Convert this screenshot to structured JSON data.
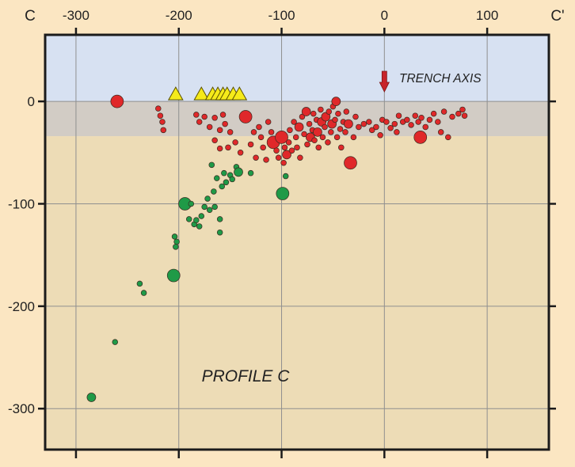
{
  "chart_data": {
    "type": "scatter",
    "title": "",
    "profile_label": "PROFILE C",
    "section_start_label": "C",
    "section_end_label": "C'",
    "xlabel": "",
    "ylabel": "",
    "xlim": [
      -330,
      160
    ],
    "ylim": [
      -340,
      65
    ],
    "x_ticks": [
      -300,
      -200,
      -100,
      0,
      100
    ],
    "x_tick_labels": [
      "-300",
      "-200",
      "-100",
      "0",
      "100"
    ],
    "y_ticks": [
      0,
      -100,
      -200,
      -300
    ],
    "y_tick_labels": [
      "0",
      "-100",
      "-200",
      "-300"
    ],
    "grid": true,
    "layers": [
      {
        "name": "water",
        "from": 65,
        "to": 0,
        "color": "#d7e1f2"
      },
      {
        "name": "crust",
        "from": 0,
        "to": -34,
        "color": "#d2ccc5"
      },
      {
        "name": "mantle",
        "from": -34,
        "to": -340,
        "color": "#eddcb6"
      }
    ],
    "volcanoes": {
      "color": "#f5ea1a",
      "x": [
        -203,
        -178,
        -167,
        -162,
        -157,
        -153,
        -147,
        -141
      ]
    },
    "trench_axis": {
      "label": "TRENCH AXIS",
      "x": 0,
      "color": "#c8242a"
    },
    "series": [
      {
        "color": "#e0282a",
        "points": [
          [
            -260,
            0,
            "l"
          ],
          [
            -220,
            -7,
            "s"
          ],
          [
            -218,
            -14,
            "s"
          ],
          [
            -216,
            -20,
            "s"
          ],
          [
            -215,
            -28,
            "s"
          ],
          [
            -183,
            -13,
            "s"
          ],
          [
            -180,
            -20,
            "s"
          ],
          [
            -175,
            -15,
            "s"
          ],
          [
            -170,
            -25,
            "s"
          ],
          [
            -165,
            -16,
            "s"
          ],
          [
            -160,
            -28,
            "s"
          ],
          [
            -157,
            -13,
            "s"
          ],
          [
            -155,
            -22,
            "s"
          ],
          [
            -150,
            -30,
            "s"
          ],
          [
            -165,
            -38,
            "s"
          ],
          [
            -160,
            -46,
            "s"
          ],
          [
            -152,
            -45,
            "s"
          ],
          [
            -145,
            -40,
            "s"
          ],
          [
            -140,
            -50,
            "s"
          ],
          [
            -135,
            -15,
            "l"
          ],
          [
            -130,
            -42,
            "s"
          ],
          [
            -127,
            -30,
            "s"
          ],
          [
            -125,
            -55,
            "s"
          ],
          [
            -122,
            -25,
            "s"
          ],
          [
            -120,
            -35,
            "s"
          ],
          [
            -118,
            -45,
            "s"
          ],
          [
            -115,
            -57,
            "s"
          ],
          [
            -113,
            -20,
            "s"
          ],
          [
            -110,
            -30,
            "s"
          ],
          [
            -108,
            -40,
            "l"
          ],
          [
            -105,
            -48,
            "s"
          ],
          [
            -103,
            -55,
            "s"
          ],
          [
            -100,
            -35,
            "l"
          ],
          [
            -98,
            -60,
            "s"
          ],
          [
            -97,
            -45,
            "s"
          ],
          [
            -95,
            -52,
            "m"
          ],
          [
            -93,
            -40,
            "s"
          ],
          [
            -92,
            -28,
            "s"
          ],
          [
            -90,
            -48,
            "s"
          ],
          [
            -88,
            -20,
            "s"
          ],
          [
            -86,
            -35,
            "s"
          ],
          [
            -85,
            -45,
            "s"
          ],
          [
            -83,
            -25,
            "m"
          ],
          [
            -82,
            -55,
            "s"
          ],
          [
            -80,
            -15,
            "s"
          ],
          [
            -78,
            -32,
            "s"
          ],
          [
            -76,
            -10,
            "m"
          ],
          [
            -75,
            -42,
            "s"
          ],
          [
            -73,
            -22,
            "s"
          ],
          [
            -72,
            -35,
            "m"
          ],
          [
            -70,
            -28,
            "s"
          ],
          [
            -69,
            -12,
            "s"
          ],
          [
            -68,
            -38,
            "s"
          ],
          [
            -66,
            -18,
            "s"
          ],
          [
            -65,
            -30,
            "m"
          ],
          [
            -64,
            -45,
            "s"
          ],
          [
            -62,
            -8,
            "s"
          ],
          [
            -61,
            -20,
            "m"
          ],
          [
            -60,
            -35,
            "s"
          ],
          [
            -58,
            -25,
            "s"
          ],
          [
            -57,
            -15,
            "m"
          ],
          [
            -55,
            -40,
            "s"
          ],
          [
            -54,
            -10,
            "s"
          ],
          [
            -52,
            -30,
            "s"
          ],
          [
            -51,
            -22,
            "m"
          ],
          [
            -50,
            -5,
            "s"
          ],
          [
            -48,
            -18,
            "s"
          ],
          [
            -47,
            0,
            "m"
          ],
          [
            -46,
            -35,
            "s"
          ],
          [
            -45,
            -12,
            "s"
          ],
          [
            -43,
            -27,
            "s"
          ],
          [
            -42,
            -45,
            "s"
          ],
          [
            -40,
            -20,
            "s"
          ],
          [
            -38,
            -30,
            "s"
          ],
          [
            -37,
            -10,
            "s"
          ],
          [
            -35,
            -22,
            "m"
          ],
          [
            -33,
            -60,
            "l"
          ],
          [
            -30,
            -35,
            "s"
          ],
          [
            -28,
            -15,
            "s"
          ],
          [
            -25,
            -25,
            "s"
          ],
          [
            -20,
            -22,
            "s"
          ],
          [
            -15,
            -20,
            "s"
          ],
          [
            -12,
            -28,
            "s"
          ],
          [
            -8,
            -25,
            "s"
          ],
          [
            -2,
            -18,
            "s"
          ],
          [
            2,
            -20,
            "s"
          ],
          [
            6,
            -26,
            "s"
          ],
          [
            10,
            -22,
            "s"
          ],
          [
            14,
            -14,
            "s"
          ],
          [
            18,
            -20,
            "s"
          ],
          [
            22,
            -18,
            "s"
          ],
          [
            26,
            -23,
            "s"
          ],
          [
            30,
            -14,
            "s"
          ],
          [
            33,
            -20,
            "s"
          ],
          [
            36,
            -16,
            "s"
          ],
          [
            40,
            -25,
            "s"
          ],
          [
            44,
            -18,
            "s"
          ],
          [
            48,
            -12,
            "s"
          ],
          [
            52,
            -20,
            "s"
          ],
          [
            55,
            -30,
            "s"
          ],
          [
            58,
            -10,
            "s"
          ],
          [
            62,
            -35,
            "s"
          ],
          [
            66,
            -15,
            "s"
          ],
          [
            72,
            -12,
            "s"
          ],
          [
            76,
            -8,
            "s"
          ],
          [
            78,
            -14,
            "s"
          ],
          [
            35,
            -35,
            "l"
          ],
          [
            -4,
            -33,
            "s"
          ],
          [
            12,
            -30,
            "s"
          ]
        ]
      },
      {
        "color": "#1f9a47",
        "points": [
          [
            -285,
            -289,
            "m"
          ],
          [
            -262,
            -235,
            "s"
          ],
          [
            -234,
            -187,
            "s"
          ],
          [
            -238,
            -178,
            "s"
          ],
          [
            -205,
            -170,
            "l"
          ],
          [
            -203,
            -142,
            "s"
          ],
          [
            -204,
            -132,
            "s"
          ],
          [
            -202,
            -137,
            "s"
          ],
          [
            -194,
            -100,
            "l"
          ],
          [
            -190,
            -115,
            "s"
          ],
          [
            -188,
            -100,
            "s"
          ],
          [
            -185,
            -120,
            "s"
          ],
          [
            -183,
            -116,
            "s"
          ],
          [
            -180,
            -122,
            "s"
          ],
          [
            -178,
            -112,
            "s"
          ],
          [
            -175,
            -103,
            "s"
          ],
          [
            -172,
            -95,
            "s"
          ],
          [
            -170,
            -106,
            "s"
          ],
          [
            -166,
            -88,
            "s"
          ],
          [
            -163,
            -75,
            "s"
          ],
          [
            -160,
            -128,
            "s"
          ],
          [
            -158,
            -83,
            "s"
          ],
          [
            -156,
            -70,
            "s"
          ],
          [
            -154,
            -79,
            "s"
          ],
          [
            -150,
            -72,
            "s"
          ],
          [
            -148,
            -76,
            "s"
          ],
          [
            -144,
            -64,
            "s"
          ],
          [
            -142,
            -69,
            "m"
          ],
          [
            -165,
            -103,
            "s"
          ],
          [
            -160,
            -115,
            "s"
          ],
          [
            -168,
            -62,
            "s"
          ],
          [
            -99,
            -90,
            "l"
          ],
          [
            -96,
            -73,
            "s"
          ],
          [
            -130,
            -70,
            "s"
          ]
        ]
      }
    ]
  }
}
